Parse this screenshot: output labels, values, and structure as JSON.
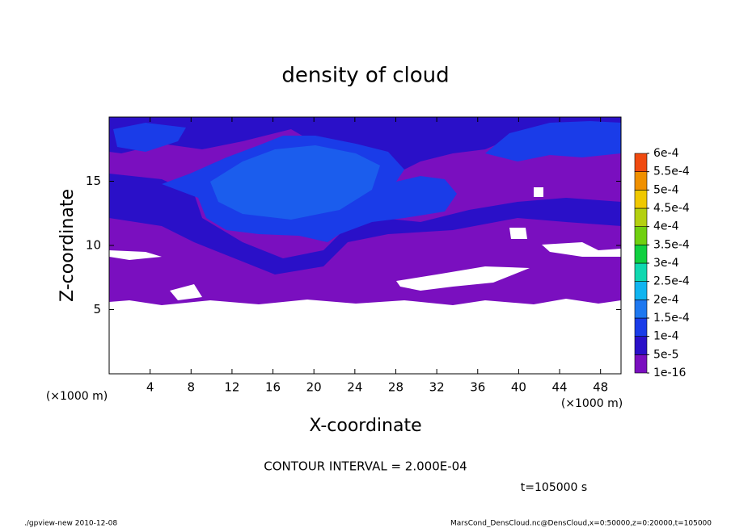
{
  "chart_data": {
    "type": "contour",
    "title": "density of cloud",
    "xlabel": "X-coordinate",
    "ylabel": "Z-coordinate",
    "x_units": "(×1000 m)",
    "y_units": "(×1000 m)",
    "xlim": [
      0,
      50
    ],
    "xticks": [
      4,
      8,
      12,
      16,
      20,
      24,
      28,
      32,
      36,
      40,
      44,
      48
    ],
    "ylim": [
      0,
      20
    ],
    "yticks": [
      5,
      10,
      15
    ],
    "clim": [
      1e-16,
      0.0006
    ],
    "cticks": [
      {
        "value": 1e-16,
        "label": "1e-16"
      },
      {
        "value": 5e-05,
        "label": "5e-5"
      },
      {
        "value": 0.0001,
        "label": "1e-4"
      },
      {
        "value": 0.00015,
        "label": "1.5e-4"
      },
      {
        "value": 0.0002,
        "label": "2e-4"
      },
      {
        "value": 0.00025,
        "label": "2.5e-4"
      },
      {
        "value": 0.0003,
        "label": "3e-4"
      },
      {
        "value": 0.00035,
        "label": "3.5e-4"
      },
      {
        "value": 0.0004,
        "label": "4e-4"
      },
      {
        "value": 0.00045,
        "label": "4.5e-4"
      },
      {
        "value": 0.0005,
        "label": "5e-4"
      },
      {
        "value": 0.00055,
        "label": "5.5e-4"
      },
      {
        "value": 0.0006,
        "label": "6e-4"
      }
    ],
    "colors": [
      "#7a0fbf",
      "#2a10c8",
      "#1a3ce8",
      "#1e78f0",
      "#10b4f0",
      "#10d8b0",
      "#10d040",
      "#70d010",
      "#b4d010",
      "#f0c800",
      "#f09000",
      "#f04a10",
      "#f07878"
    ],
    "contour_interval": "CONTOUR INTERVAL = 2.000E-04",
    "time_label": "t=105000 s",
    "footer_left": "./gpview-new  2010-12-08",
    "footer_right": "MarsCond_DensCloud.nc@DensCloud,x=0:50000,z=0:20000,t=105000"
  }
}
